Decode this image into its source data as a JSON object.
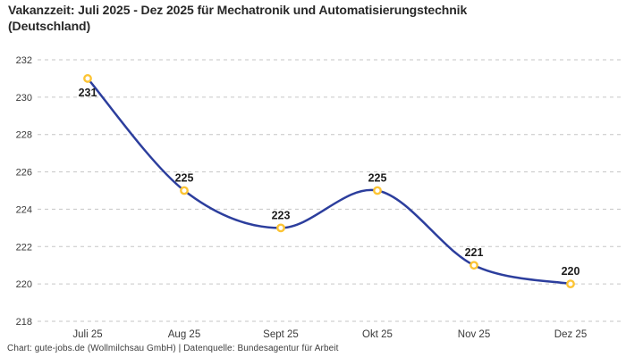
{
  "header": {
    "title_line1": "Vakanzzeit: Juli 2025 - Dez 2025 für Mechatronik und Automatisierungstechnik",
    "title_line2": "(Deutschland)"
  },
  "footer": {
    "credit": "Chart: gute-jobs.de (Wollmilchsau GmbH) | Datenquelle: Bundesagentur für Arbeit"
  },
  "chart_data": {
    "type": "line",
    "title": "Vakanzzeit: Juli 2025 - Dez 2025 für Mechatronik und Automatisierungstechnik (Deutschland)",
    "categories": [
      "Juli 25",
      "Aug 25",
      "Sept 25",
      "Okt 25",
      "Nov 25",
      "Dez 25"
    ],
    "values": [
      231,
      225,
      223,
      225,
      221,
      220
    ],
    "point_labels": [
      "231",
      "225",
      "223",
      "225",
      "221",
      "220"
    ],
    "label_positions": [
      "below",
      "above",
      "above",
      "above",
      "above",
      "above"
    ],
    "xlabel": "",
    "ylabel": "",
    "ylim": [
      218,
      232
    ],
    "y_ticks": [
      218,
      220,
      222,
      224,
      226,
      228,
      230,
      232
    ],
    "grid": "horizontal-dashed",
    "legend": "none",
    "curve": "smooth",
    "colors": {
      "line": "#2c3e9d",
      "marker_ring": "#fcc434",
      "marker_fill": "#ffffff",
      "grid": "#c6c6c6",
      "axis_text": "#3a3a3a",
      "point_label": "#1d1d1d"
    }
  }
}
